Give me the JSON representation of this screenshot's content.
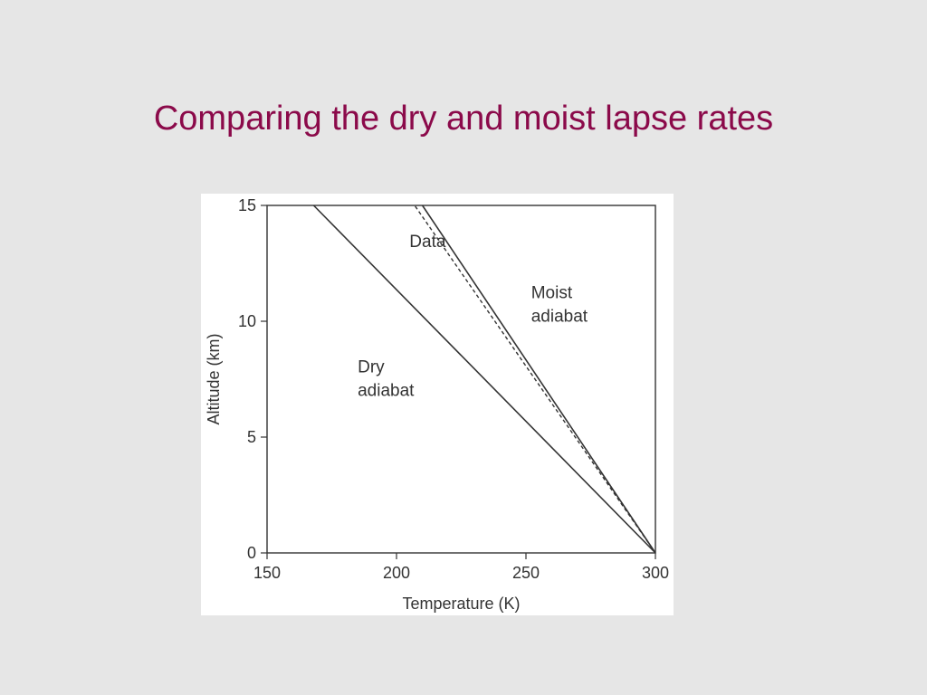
{
  "slide": {
    "title": "Comparing the dry and moist lapse rates"
  },
  "chart_data": {
    "type": "line",
    "xlabel": "Temperature (K)",
    "ylabel": "Altitude (km)",
    "xlim": [
      150,
      300
    ],
    "ylim": [
      0,
      15
    ],
    "xticks": [
      "150",
      "200",
      "250",
      "300"
    ],
    "yticks": [
      "0",
      "5",
      "10",
      "15"
    ],
    "grid": false,
    "series": [
      {
        "name": "Dry\nadiabat",
        "style": "solid",
        "x": [
          300,
          168
        ],
        "y": [
          0,
          15
        ]
      },
      {
        "name": "Moist\nadiabat",
        "style": "solid",
        "x": [
          300,
          210
        ],
        "y": [
          0,
          15
        ]
      },
      {
        "name": "Data",
        "style": "dashed",
        "x": [
          300,
          207
        ],
        "y": [
          0,
          15
        ]
      }
    ],
    "annotations": [
      {
        "text": "Data",
        "x": 205,
        "y": 13.2
      },
      {
        "text": "Moist\nadiabat",
        "x": 252,
        "y": 11.0
      },
      {
        "text": "Dry\nadiabat",
        "x": 185,
        "y": 7.8
      }
    ],
    "colors": {
      "line": "#333333",
      "title": "#8b0a4a",
      "background": "#e6e6e6"
    }
  }
}
